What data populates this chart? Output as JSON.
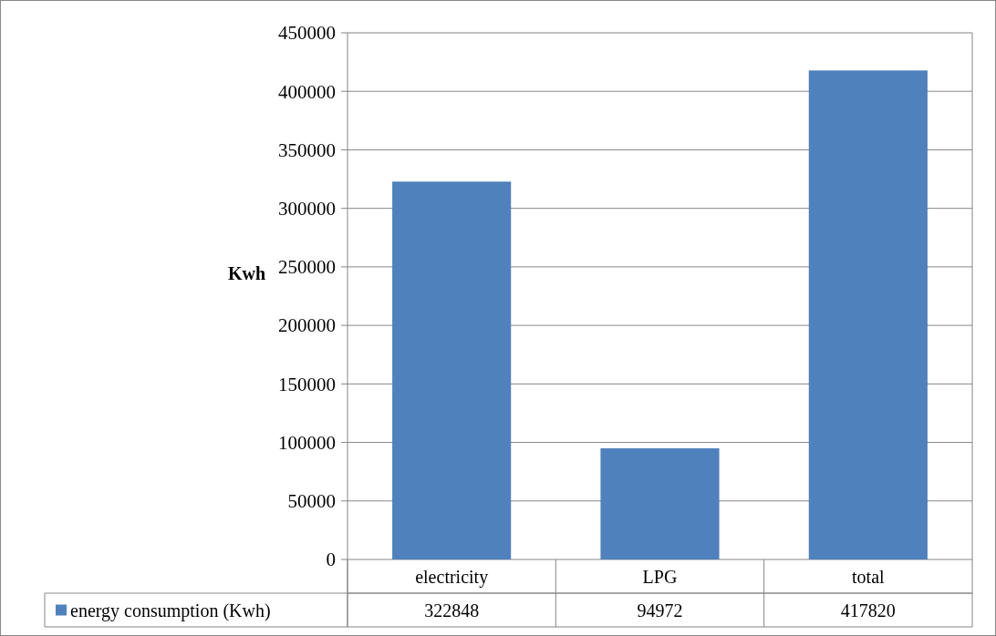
{
  "chart_data": {
    "type": "bar",
    "ylabel": "Kwh",
    "categories": [
      "electricity",
      "LPG",
      "total"
    ],
    "series": [
      {
        "name": "energy consumption (Kwh)",
        "color": "#4f81bd",
        "values": [
          322848,
          94972,
          417820
        ]
      }
    ],
    "ylim": [
      0,
      450000
    ],
    "yticks": [
      0,
      50000,
      100000,
      150000,
      200000,
      250000,
      300000,
      350000,
      400000,
      450000
    ],
    "grid": "y",
    "legend": "bottom",
    "data_labels": true
  }
}
